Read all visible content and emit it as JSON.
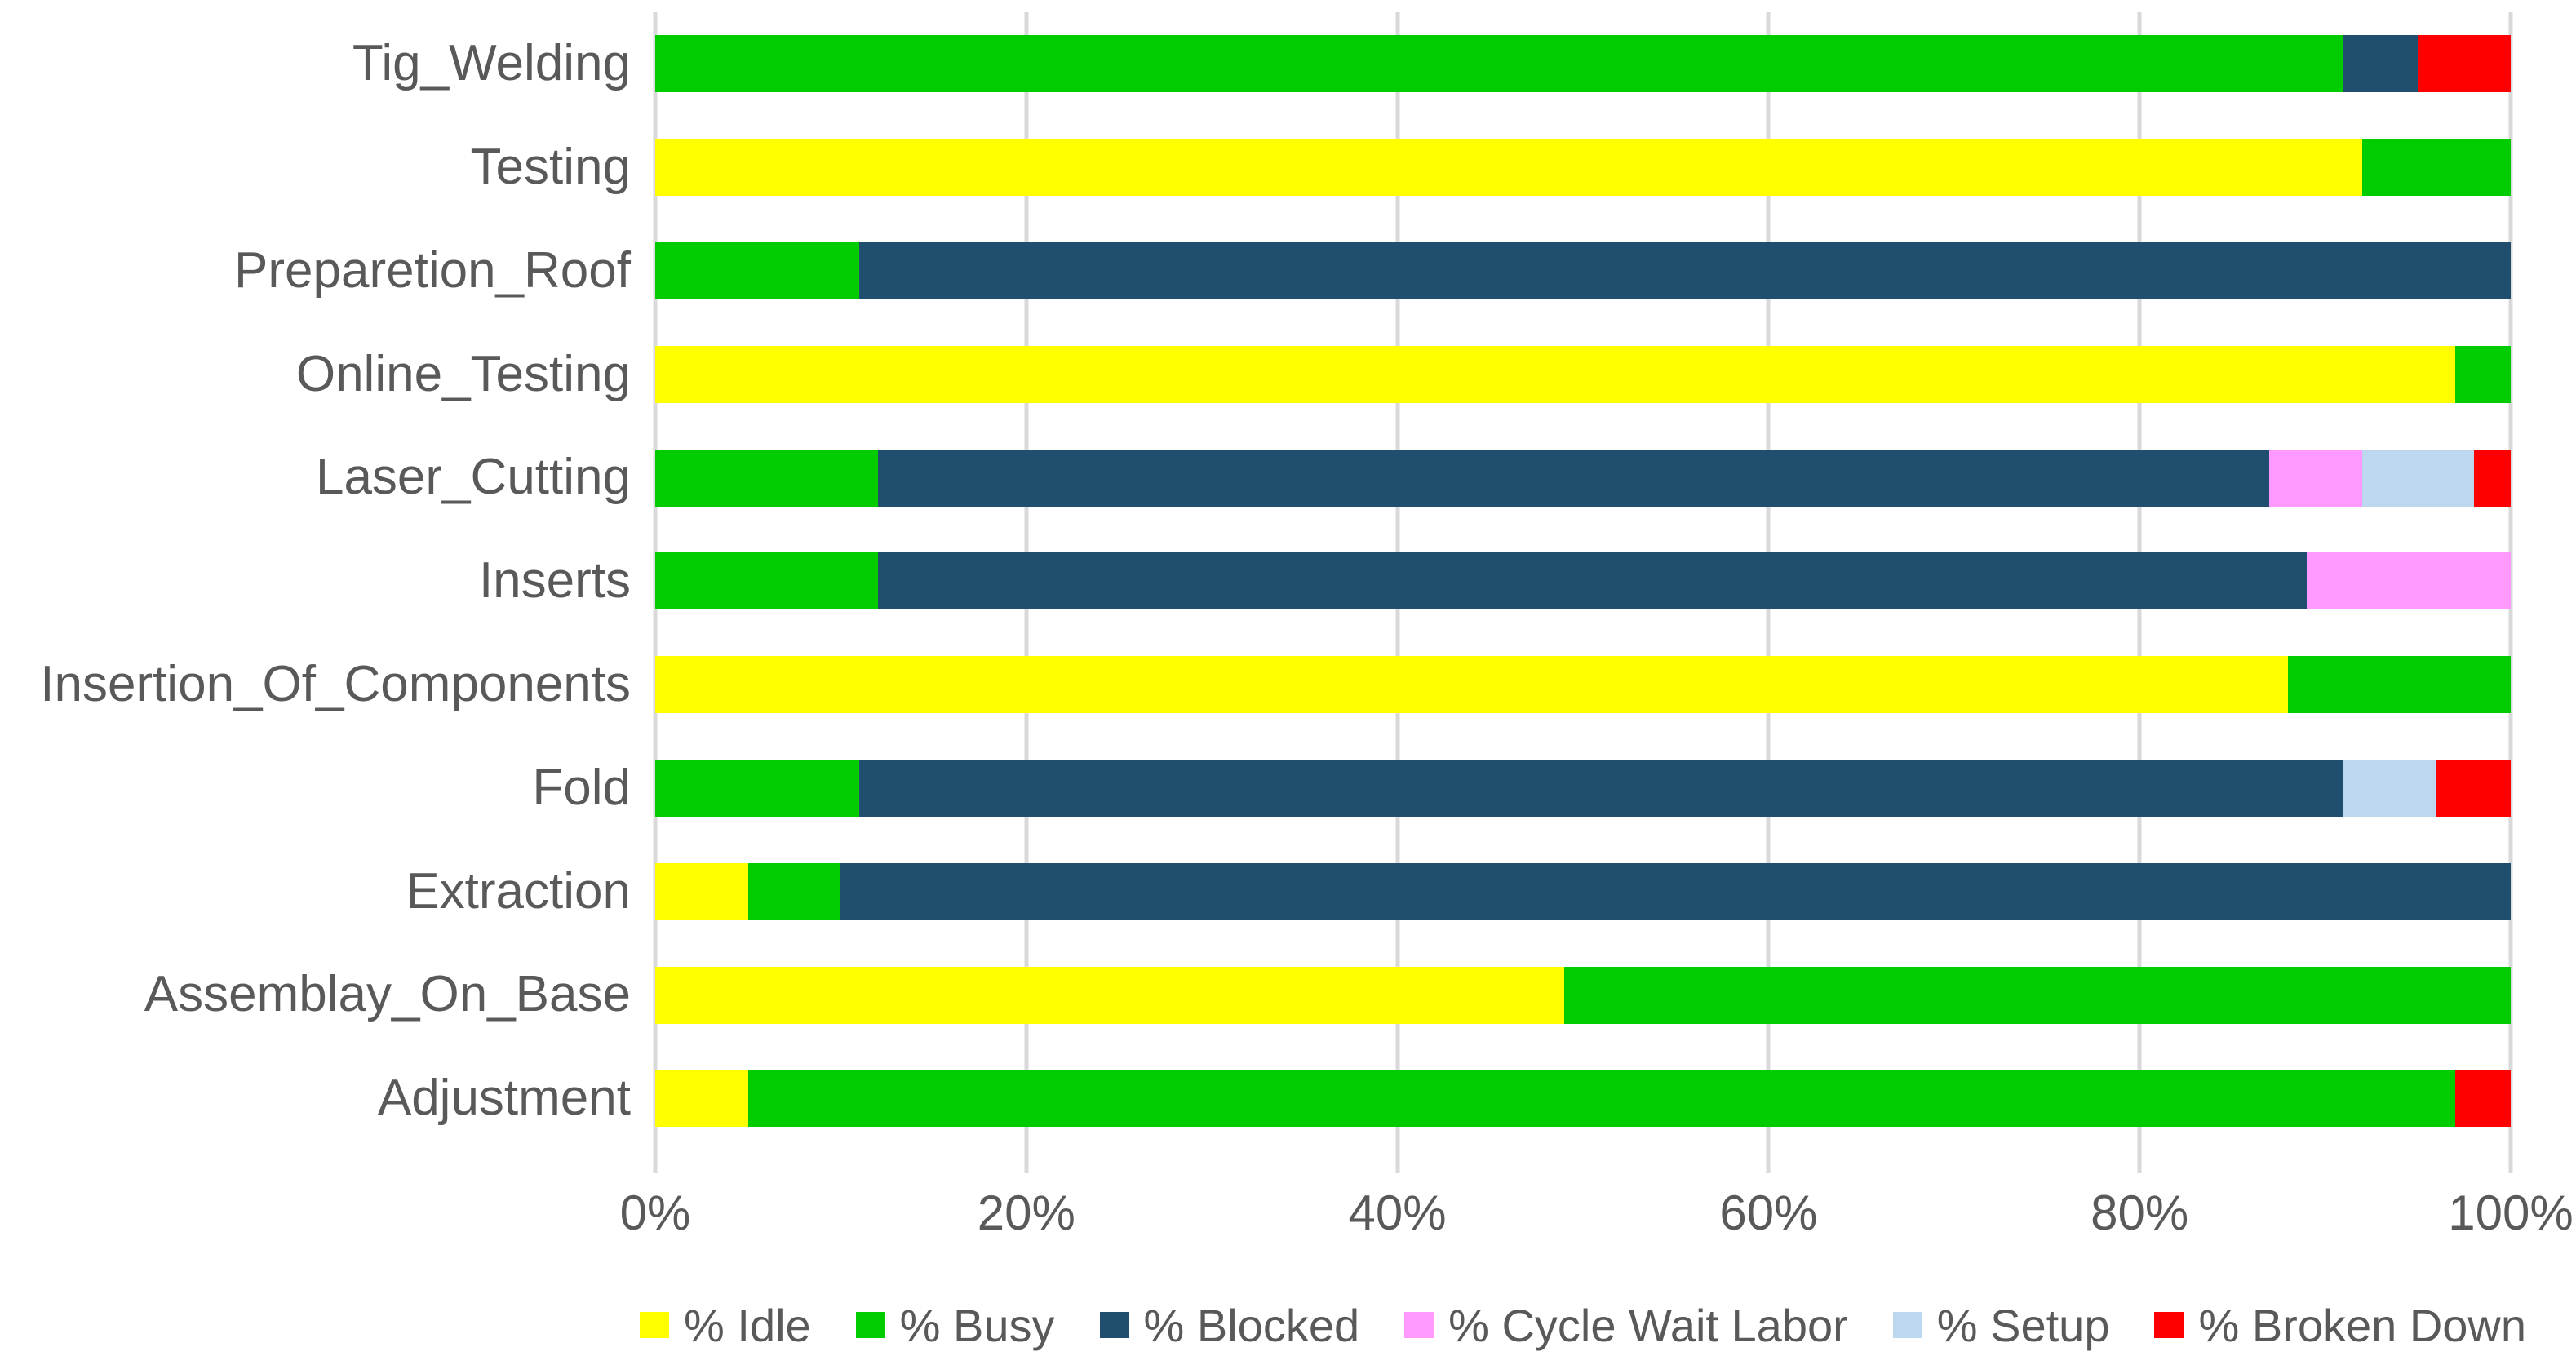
{
  "chart_data": {
    "type": "bar",
    "orientation": "horizontal",
    "stacked": true,
    "units": "percent",
    "title": "",
    "xlabel": "",
    "ylabel": "",
    "grid": true,
    "legend_position": "bottom",
    "categories": [
      "Tig_Welding",
      "Testing",
      "Preparetion_Roof",
      "Online_Testing",
      "Laser_Cutting",
      "Inserts",
      "Insertion_Of_Components",
      "Fold",
      "Extraction",
      "Assemblay_On_Base",
      "Adjustment"
    ],
    "series": [
      {
        "name": "% Idle",
        "color": "#FFFF00",
        "values": [
          0,
          92,
          0,
          97,
          0,
          0,
          88,
          0,
          5,
          49,
          5
        ]
      },
      {
        "name": "% Busy",
        "color": "#00CC00",
        "values": [
          91,
          8,
          11,
          3,
          12,
          12,
          12,
          11,
          5,
          51,
          92
        ]
      },
      {
        "name": "% Blocked",
        "color": "#1F4E6E",
        "values": [
          4,
          0,
          89,
          0,
          75,
          77,
          0,
          80,
          90,
          0,
          0
        ]
      },
      {
        "name": "% Cycle Wait Labor",
        "color": "#FF99FF",
        "values": [
          0,
          0,
          0,
          0,
          5,
          11,
          0,
          0,
          0,
          0,
          0
        ]
      },
      {
        "name": "% Setup",
        "color": "#BDD7EE",
        "values": [
          0,
          0,
          0,
          0,
          6,
          0,
          0,
          5,
          0,
          0,
          0
        ]
      },
      {
        "name": "% Broken Down",
        "color": "#FF0000",
        "values": [
          5,
          0,
          0,
          0,
          2,
          0,
          0,
          4,
          0,
          0,
          3
        ]
      }
    ],
    "x_axis": {
      "min": 0,
      "max": 100,
      "ticks": [
        "0%",
        "20%",
        "40%",
        "60%",
        "80%",
        "100%"
      ]
    },
    "colors": {
      "gridline": "#D9D9D9",
      "axis_text": "#595959",
      "background": "#FFFFFF"
    }
  }
}
